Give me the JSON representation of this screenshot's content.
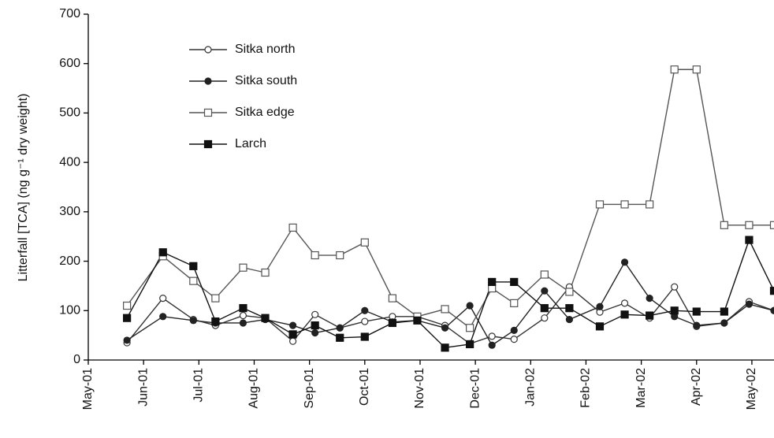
{
  "chart_data": {
    "type": "line",
    "y_label": "Litterfall [TCA] (ng g⁻¹ dry weight)",
    "xlim": [
      0,
      12.4
    ],
    "ylim": [
      0,
      700
    ],
    "yticks": [
      0,
      100,
      200,
      300,
      400,
      500,
      600,
      700
    ],
    "xticks": [
      {
        "value": 0,
        "label": "May-01"
      },
      {
        "value": 1,
        "label": "Jun-01"
      },
      {
        "value": 2,
        "label": "Jul-01"
      },
      {
        "value": 3,
        "label": "Aug-01"
      },
      {
        "value": 4,
        "label": "Sep-01"
      },
      {
        "value": 5,
        "label": "Oct-01"
      },
      {
        "value": 6,
        "label": "Nov-01"
      },
      {
        "value": 7,
        "label": "Dec-01"
      },
      {
        "value": 8,
        "label": "Jan-02"
      },
      {
        "value": 9,
        "label": "Feb-02"
      },
      {
        "value": 10,
        "label": "Mar-02"
      },
      {
        "value": 11,
        "label": "Apr-02"
      },
      {
        "value": 12,
        "label": "May-02"
      }
    ],
    "x": [
      0.7,
      1.35,
      1.9,
      2.3,
      2.8,
      3.2,
      3.7,
      4.1,
      4.55,
      5.0,
      5.5,
      5.95,
      6.45,
      6.9,
      7.3,
      7.7,
      8.25,
      8.7,
      9.25,
      9.7,
      10.15,
      10.6,
      11.0,
      11.5,
      11.95,
      12.4
    ],
    "series": [
      {
        "name": "Sitka north",
        "color": "#333333",
        "marker": "circle",
        "filled": false,
        "values": [
          35,
          125,
          82,
          70,
          90,
          85,
          38,
          92,
          65,
          78,
          88,
          88,
          70,
          33,
          48,
          42,
          85,
          148,
          97,
          115,
          85,
          148,
          68,
          75,
          118,
          100
        ]
      },
      {
        "name": "Sitka south",
        "color": "#222222",
        "marker": "circle",
        "filled": true,
        "values": [
          40,
          88,
          80,
          75,
          75,
          82,
          70,
          55,
          65,
          100,
          77,
          80,
          65,
          110,
          30,
          60,
          140,
          82,
          108,
          198,
          125,
          88,
          70,
          75,
          113,
          100
        ]
      },
      {
        "name": "Sitka edge",
        "color": "#555555",
        "marker": "square",
        "filled": false,
        "values": [
          110,
          210,
          160,
          125,
          187,
          177,
          268,
          212,
          212,
          238,
          125,
          88,
          103,
          65,
          145,
          115,
          173,
          138,
          315,
          315,
          315,
          588,
          588,
          273,
          273,
          273
        ]
      },
      {
        "name": "Larch",
        "color": "#111111",
        "marker": "square",
        "filled": true,
        "values": [
          85,
          218,
          190,
          78,
          105,
          85,
          52,
          70,
          45,
          47,
          75,
          80,
          25,
          32,
          158,
          158,
          105,
          105,
          68,
          92,
          90,
          100,
          98,
          98,
          243,
          140
        ]
      }
    ]
  }
}
